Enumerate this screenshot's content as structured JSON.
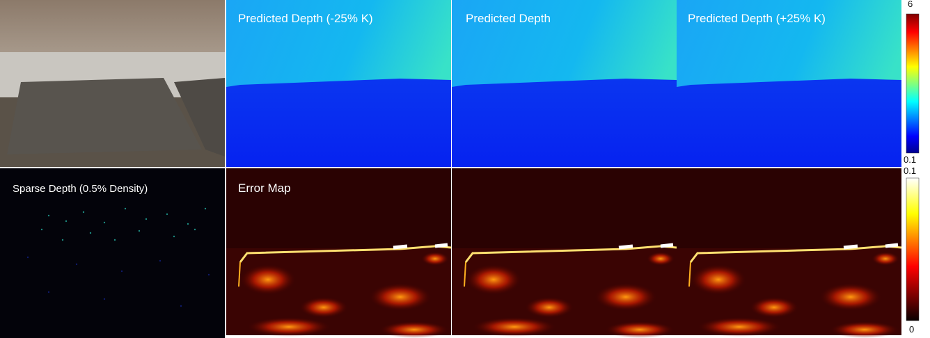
{
  "labels": {
    "top_row": [
      "Predicted Depth (-25% K)",
      "Predicted Depth",
      "Predicted Depth (+25% K)"
    ],
    "bottom_row": [
      "Sparse Depth (0.5% Density)",
      "Error Map"
    ]
  },
  "colorbars": [
    {
      "top": 6,
      "bottom": 0.1
    },
    {
      "top": 0.1,
      "bottom": 0
    }
  ]
}
